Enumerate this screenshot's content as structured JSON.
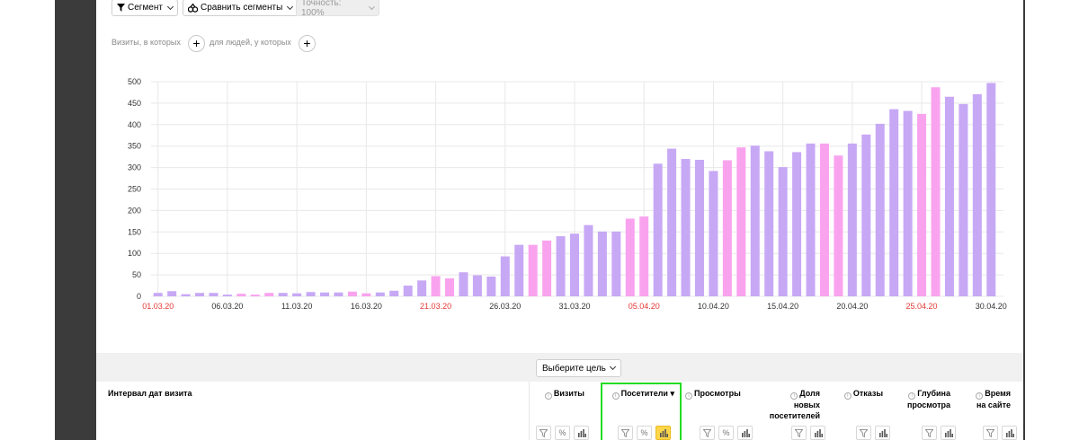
{
  "toolbar": {
    "segment_label": "Сегмент",
    "compare_label": "Сравнить сегменты",
    "accuracy_label": "Точность: 100%"
  },
  "conditions": {
    "visits_label": "Визиты, в которых",
    "people_label": "для людей, у которых",
    "plus_symbol": "+"
  },
  "chart_data": {
    "type": "bar",
    "x": [
      "01.03.20",
      "02.03.20",
      "03.03.20",
      "04.03.20",
      "05.03.20",
      "06.03.20",
      "07.03.20",
      "08.03.20",
      "09.03.20",
      "10.03.20",
      "11.03.20",
      "12.03.20",
      "13.03.20",
      "14.03.20",
      "15.03.20",
      "16.03.20",
      "17.03.20",
      "18.03.20",
      "19.03.20",
      "20.03.20",
      "21.03.20",
      "22.03.20",
      "23.03.20",
      "24.03.20",
      "25.03.20",
      "26.03.20",
      "27.03.20",
      "28.03.20",
      "29.03.20",
      "30.03.20",
      "31.03.20",
      "01.04.20",
      "02.04.20",
      "03.04.20",
      "04.04.20",
      "05.04.20",
      "06.04.20",
      "07.04.20",
      "08.04.20",
      "09.04.20",
      "10.04.20",
      "11.04.20",
      "12.04.20",
      "13.04.20",
      "14.04.20",
      "15.04.20",
      "16.04.20",
      "17.04.20",
      "18.04.20",
      "19.04.20",
      "20.04.20",
      "21.04.20",
      "22.04.20",
      "23.04.20",
      "24.04.20",
      "25.04.20",
      "26.04.20",
      "27.04.20",
      "28.04.20",
      "29.04.20",
      "30.04.20"
    ],
    "values": [
      8,
      12,
      5,
      8,
      8,
      4,
      6,
      4,
      8,
      8,
      7,
      10,
      9,
      9,
      11,
      7,
      9,
      13,
      25,
      37,
      47,
      42,
      56,
      49,
      46,
      93,
      120,
      120,
      130,
      140,
      146,
      166,
      151,
      151,
      181,
      186,
      309,
      344,
      320,
      318,
      292,
      317,
      347,
      351,
      338,
      301,
      336,
      356,
      356,
      328,
      356,
      377,
      402,
      436,
      432,
      425,
      487,
      465,
      448,
      471,
      497
    ],
    "weekend": [
      false,
      false,
      false,
      false,
      false,
      false,
      true,
      true,
      true,
      false,
      false,
      false,
      false,
      false,
      true,
      true,
      false,
      false,
      false,
      false,
      true,
      true,
      false,
      false,
      false,
      false,
      false,
      true,
      true,
      false,
      false,
      false,
      false,
      false,
      true,
      true,
      false,
      false,
      false,
      false,
      false,
      true,
      true,
      false,
      false,
      false,
      false,
      false,
      true,
      true,
      false,
      false,
      false,
      false,
      false,
      true,
      true,
      false,
      false,
      false,
      false
    ],
    "x_tick_labels": [
      "01.03.20",
      "06.03.20",
      "11.03.20",
      "16.03.20",
      "21.03.20",
      "26.03.20",
      "31.03.20",
      "05.04.20",
      "10.04.20",
      "15.04.20",
      "20.04.20",
      "25.04.20",
      "30.04.20"
    ],
    "x_tick_red": [
      "01.03.20",
      "21.03.20",
      "05.04.20",
      "25.04.20"
    ],
    "y_ticks": [
      "0",
      "50",
      "100",
      "150",
      "200",
      "250",
      "300",
      "350",
      "400",
      "450",
      "500"
    ],
    "ylim": [
      0,
      500
    ],
    "grid": true,
    "colors": {
      "weekday": "#c7a8f5",
      "weekend": "#f9a3ef",
      "red_tick": "#e53935",
      "tick": "#333333",
      "grid": "#e8e8e8"
    }
  },
  "goal_selector": {
    "label": "Выберите цель"
  },
  "table": {
    "dimension_header": "Интервал дат визита",
    "columns": [
      {
        "name": "visits",
        "label": "Визиты"
      },
      {
        "name": "visitors",
        "label": "Посетители",
        "sort": "▾"
      },
      {
        "name": "pageviews",
        "label": "Просмотры"
      },
      {
        "name": "new-visitors-share",
        "label": "Доля новых посетителей"
      },
      {
        "name": "bounces",
        "label": "Отказы"
      },
      {
        "name": "view-depth",
        "label": "Глубина просмотра"
      },
      {
        "name": "time-on-site",
        "label": "Время на сайте"
      }
    ],
    "icons": {
      "filter": "filter-icon",
      "percent": "%",
      "chart": "bar-chart-icon"
    }
  }
}
